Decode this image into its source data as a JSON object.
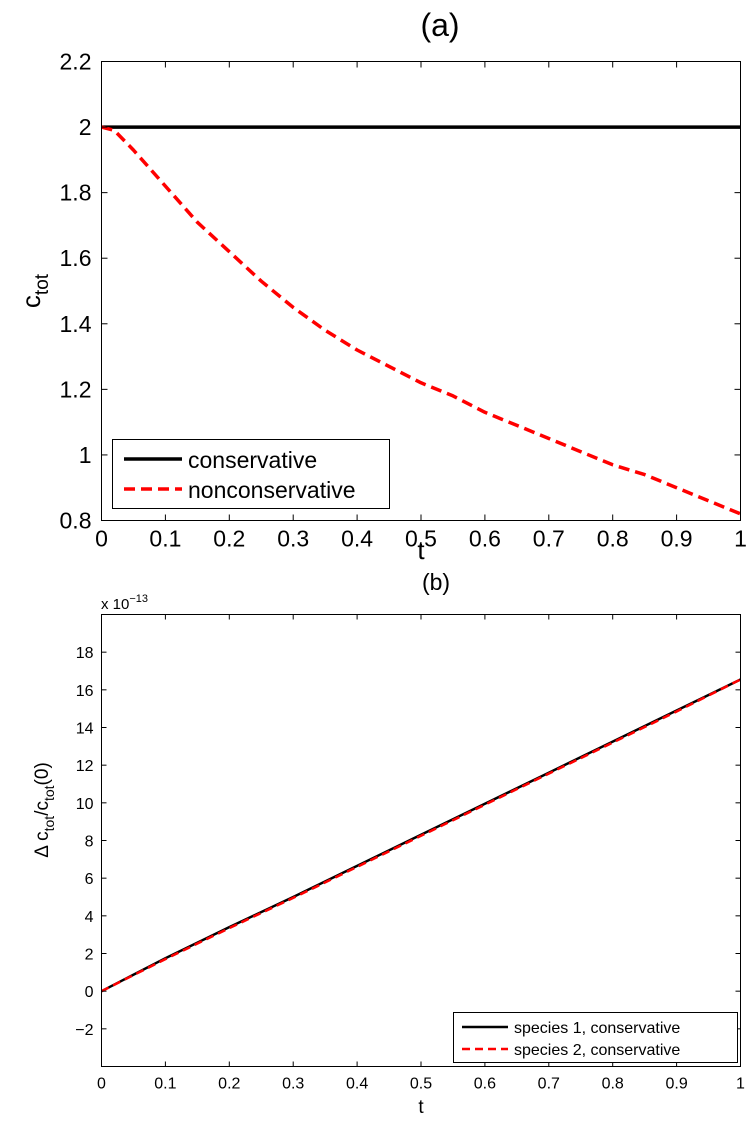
{
  "chart_data": [
    {
      "type": "line",
      "title": "(a)",
      "xlabel": "t",
      "ylabel": "c",
      "ylabel_sub": "tot",
      "xlim": [
        0,
        1
      ],
      "ylim": [
        0.8,
        2.2
      ],
      "xticks": [
        0,
        0.1,
        0.2,
        0.3,
        0.4,
        0.5,
        0.6,
        0.7,
        0.8,
        0.9,
        1
      ],
      "xtick_labels": [
        "0",
        "0.1",
        "0.2",
        "0.3",
        "0.4",
        "0.5",
        "0.6",
        "0.7",
        "0.8",
        "0.9",
        "1"
      ],
      "yticks": [
        0.8,
        1,
        1.2,
        1.4,
        1.6,
        1.8,
        2,
        2.2
      ],
      "ytick_labels": [
        "0.8",
        "1",
        "1.2",
        "1.4",
        "1.6",
        "1.8",
        "2",
        "2.2"
      ],
      "grid": false,
      "legend_position": "bottom-left",
      "series": [
        {
          "name": "conservative",
          "color": "#000000",
          "style": "solid",
          "x": [
            0,
            0.1,
            0.2,
            0.3,
            0.4,
            0.5,
            0.6,
            0.7,
            0.8,
            0.9,
            1
          ],
          "y": [
            2,
            2,
            2,
            2,
            2,
            2,
            2,
            2,
            2,
            2,
            2
          ]
        },
        {
          "name": "nonconservative",
          "color": "#ff0000",
          "style": "dashed",
          "x": [
            0,
            0.02,
            0.05,
            0.1,
            0.15,
            0.2,
            0.25,
            0.3,
            0.35,
            0.4,
            0.45,
            0.5,
            0.55,
            0.6,
            0.65,
            0.7,
            0.75,
            0.8,
            0.85,
            0.9,
            0.95,
            1
          ],
          "y": [
            2,
            1.99,
            1.93,
            1.82,
            1.71,
            1.62,
            1.53,
            1.45,
            1.38,
            1.32,
            1.27,
            1.22,
            1.18,
            1.13,
            1.09,
            1.05,
            1.01,
            0.97,
            0.94,
            0.9,
            0.86,
            0.82
          ]
        }
      ]
    },
    {
      "type": "line",
      "title": "(b)",
      "xlabel": "t",
      "ylabel_parts": [
        "Δ c",
        "tot",
        "/c",
        "tot",
        "(0)"
      ],
      "exponent_label": "x 10",
      "exponent_power": "−13",
      "xlim": [
        0,
        1
      ],
      "ylim": [
        -4,
        20
      ],
      "xticks": [
        0,
        0.1,
        0.2,
        0.3,
        0.4,
        0.5,
        0.6,
        0.7,
        0.8,
        0.9,
        1
      ],
      "xtick_labels": [
        "0",
        "0.1",
        "0.2",
        "0.3",
        "0.4",
        "0.5",
        "0.6",
        "0.7",
        "0.8",
        "0.9",
        "1"
      ],
      "yticks": [
        -2,
        0,
        2,
        4,
        6,
        8,
        10,
        12,
        14,
        16,
        18
      ],
      "ytick_labels": [
        "−2",
        "0",
        "2",
        "4",
        "6",
        "8",
        "10",
        "12",
        "14",
        "16",
        "18"
      ],
      "grid": false,
      "legend_position": "bottom-right",
      "series": [
        {
          "name": "species 1, conservative",
          "color": "#000000",
          "style": "solid",
          "x": [
            0,
            0.1,
            0.2,
            0.3,
            0.4,
            0.5,
            0.6,
            0.7,
            0.8,
            0.9,
            1
          ],
          "y": [
            0,
            1.75,
            3.4,
            5.0,
            6.65,
            8.3,
            9.95,
            11.6,
            13.25,
            14.9,
            16.55
          ]
        },
        {
          "name": "species 2, conservative",
          "color": "#ff0000",
          "style": "dashed",
          "x": [
            0,
            0.1,
            0.2,
            0.3,
            0.4,
            0.5,
            0.6,
            0.7,
            0.8,
            0.9,
            1
          ],
          "y": [
            0,
            1.7,
            3.35,
            4.95,
            6.6,
            8.25,
            9.9,
            11.55,
            13.2,
            14.85,
            16.55
          ]
        }
      ]
    }
  ]
}
